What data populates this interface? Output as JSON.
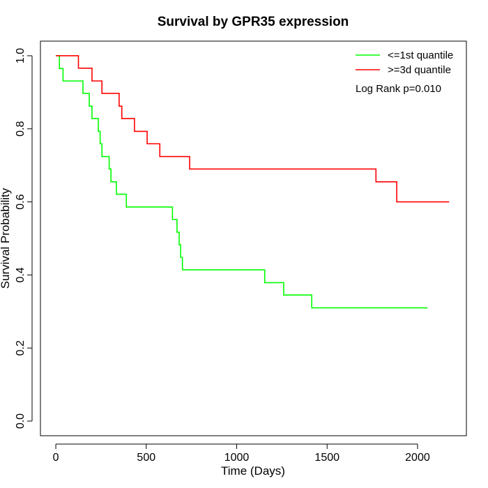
{
  "chart_data": {
    "type": "line",
    "step": true,
    "title": "Survival by GPR35 expression",
    "xlabel": "Time (Days)",
    "ylabel": "Survival Probability",
    "xlim": [
      -85,
      2270
    ],
    "ylim": [
      -0.04,
      1.04
    ],
    "xticks": [
      0,
      500,
      1000,
      1500,
      2000
    ],
    "yticks": [
      0.0,
      0.2,
      0.4,
      0.6,
      0.8,
      1.0
    ],
    "xtick_labels": [
      "0",
      "500",
      "1000",
      "1500",
      "2000"
    ],
    "ytick_labels": [
      "0.0",
      "0.2",
      "0.4",
      "0.6",
      "0.8",
      "1.0"
    ],
    "grid": false,
    "legend_position": "top-right",
    "annotation": "Log Rank p=0.010",
    "series": [
      {
        "name": "<=1st quantile",
        "color": "#00ff00",
        "x": [
          0,
          20,
          40,
          150,
          185,
          200,
          235,
          245,
          255,
          295,
          305,
          335,
          390,
          645,
          670,
          682,
          690,
          695,
          700,
          1155,
          1260,
          1415,
          2055
        ],
        "y": [
          1.0,
          0.965,
          0.931,
          0.897,
          0.862,
          0.828,
          0.793,
          0.759,
          0.724,
          0.69,
          0.655,
          0.621,
          0.586,
          0.552,
          0.517,
          0.483,
          0.448,
          0.448,
          0.414,
          0.379,
          0.345,
          0.31,
          0.31
        ]
      },
      {
        "name": ">=3d quantile",
        "color": "#ff0000",
        "x": [
          0,
          125,
          200,
          255,
          350,
          365,
          435,
          505,
          575,
          740,
          1770,
          1885,
          2175
        ],
        "y": [
          1.0,
          0.966,
          0.931,
          0.897,
          0.862,
          0.828,
          0.793,
          0.759,
          0.724,
          0.69,
          0.655,
          0.6,
          0.6
        ]
      }
    ]
  }
}
